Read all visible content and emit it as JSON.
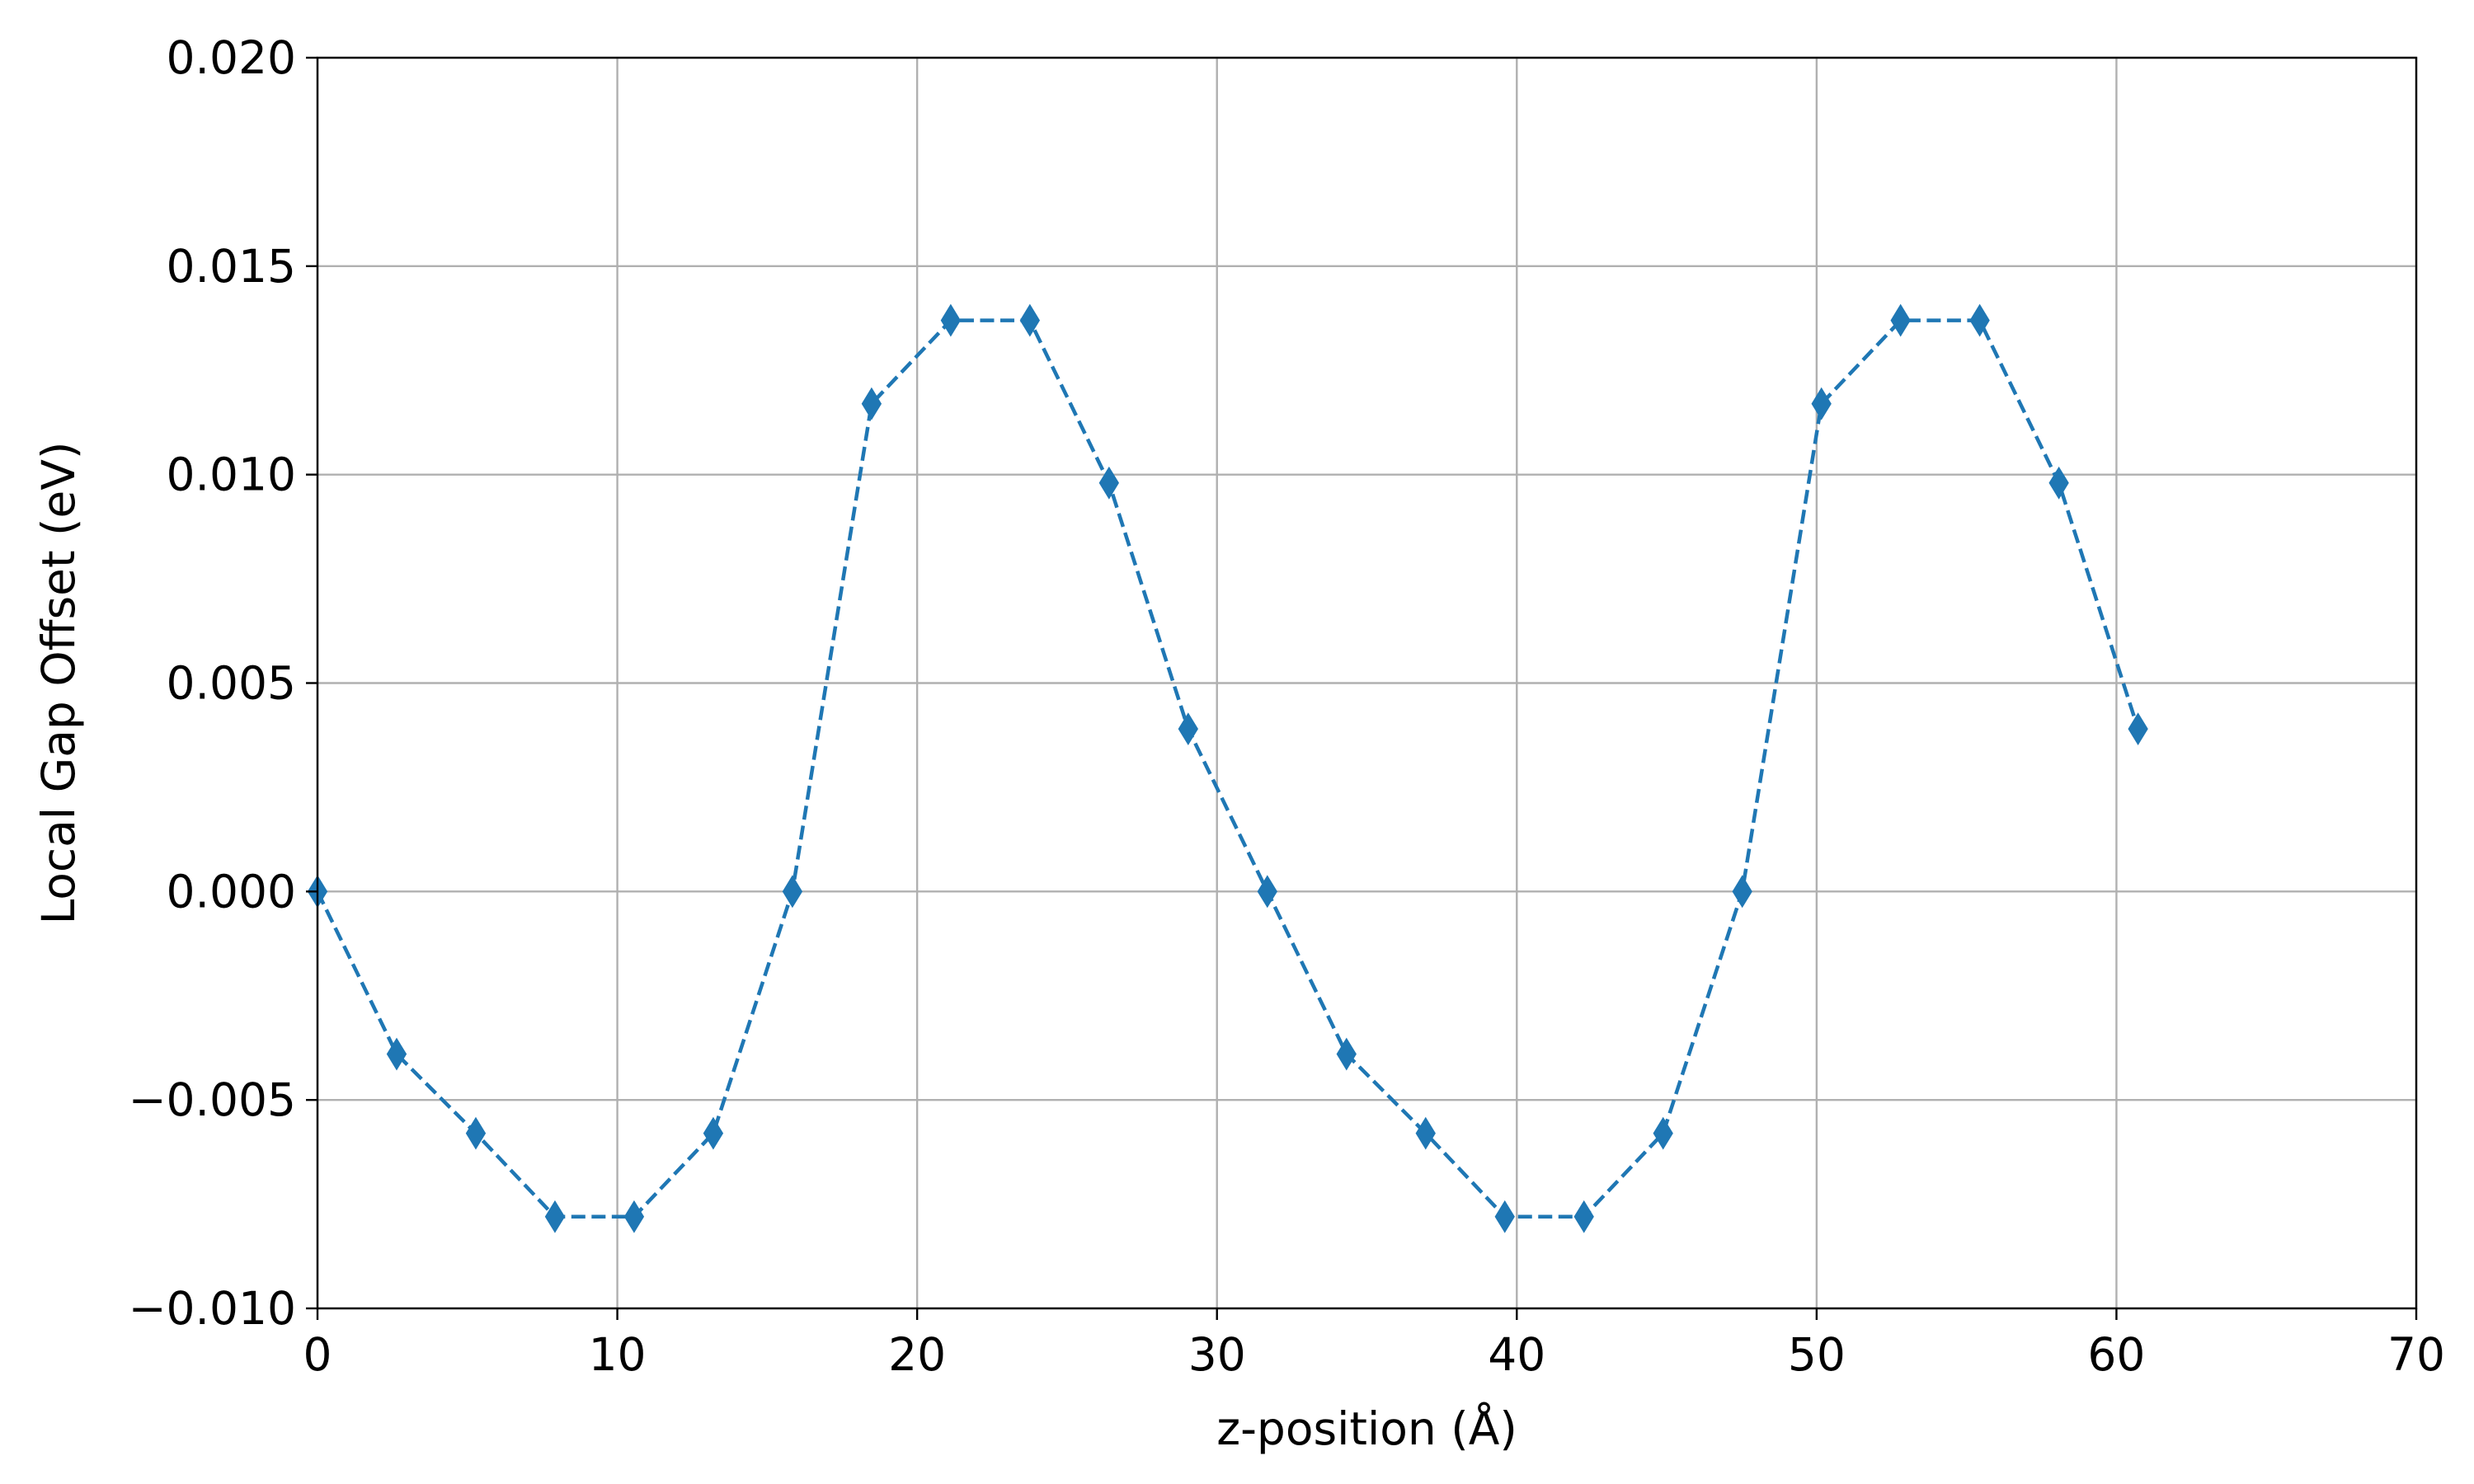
{
  "chart_data": {
    "type": "line",
    "title": "",
    "xlabel": "z-position (Å)",
    "ylabel": "Local Gap Offset (eV)",
    "xlim": [
      0,
      70
    ],
    "ylim": [
      -0.01,
      0.02
    ],
    "x_ticks": [
      0,
      10,
      20,
      30,
      40,
      50,
      60,
      70
    ],
    "x_tick_labels": [
      "0",
      "10",
      "20",
      "30",
      "40",
      "50",
      "60",
      "70"
    ],
    "y_ticks": [
      -0.01,
      -0.005,
      0.0,
      0.005,
      0.01,
      0.015,
      0.02
    ],
    "y_tick_labels": [
      "−0.010",
      "−0.005",
      "0.000",
      "0.005",
      "0.010",
      "0.015",
      "0.020"
    ],
    "grid": true,
    "legend": "none",
    "series": [
      {
        "color": "#1f77b4",
        "line_style": "dashed",
        "marker": "thin-diamond",
        "x": [
          0.0,
          2.64,
          5.28,
          7.92,
          10.56,
          13.2,
          15.84,
          18.48,
          21.12,
          23.76,
          26.4,
          29.04,
          31.68,
          34.32,
          36.96,
          39.6,
          42.24,
          44.88,
          47.52,
          50.16,
          52.8,
          55.44,
          58.08,
          60.72
        ],
        "y": [
          0.0,
          -0.0039,
          -0.0058,
          -0.0078,
          -0.0078,
          -0.0058,
          0.0,
          0.0117,
          0.0137,
          0.0137,
          0.0098,
          0.0039,
          0.0,
          -0.0039,
          -0.0058,
          -0.0078,
          -0.0078,
          -0.0058,
          0.0,
          0.0117,
          0.0137,
          0.0137,
          0.0098,
          0.0039
        ]
      }
    ]
  }
}
